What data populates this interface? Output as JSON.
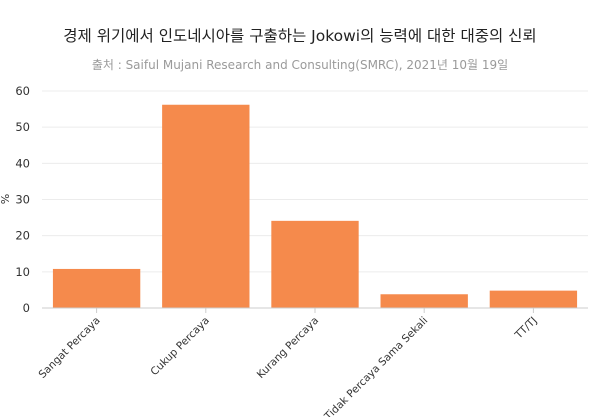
{
  "chart_data": {
    "type": "bar",
    "title": "경제 위기에서 인도네시아를 구출하는 Jokowi의 능력에 대한 대중의 신뢰",
    "subtitle": "출처 : Saiful Mujani Research and Consulting(SMRC), 2021년 10월 19일",
    "xlabel": "",
    "ylabel": "%",
    "categories": [
      "Sangat Percaya",
      "Cukup Percaya",
      "Kurang Percaya",
      "Tidak Percaya Sama Sekali",
      "TT/TJ"
    ],
    "values": [
      10.8,
      56.2,
      24.1,
      3.8,
      4.8
    ],
    "ylim": [
      0,
      60
    ],
    "yticks": [
      "0",
      "10",
      "20",
      "30",
      "40",
      "50",
      "60"
    ],
    "grid": true,
    "legend": "none",
    "color": "#F58A4C"
  }
}
